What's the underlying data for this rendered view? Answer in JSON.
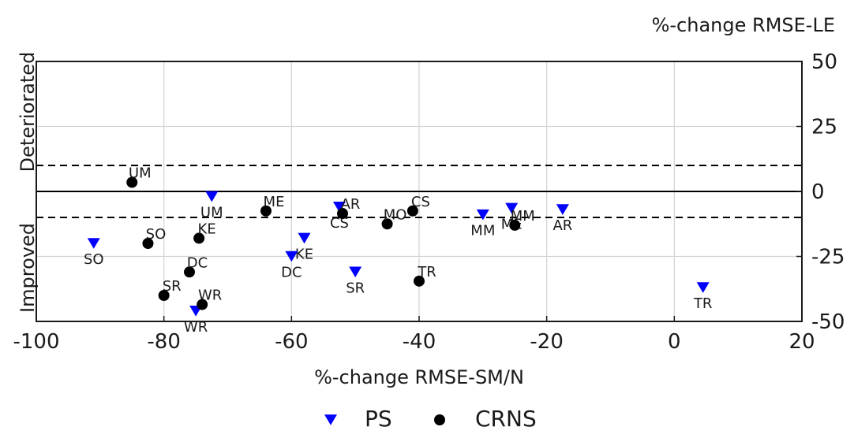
{
  "chart_data": {
    "type": "scatter",
    "xlabel": "%-change RMSE-SM/N",
    "ylabel": "%-change RMSE-LE",
    "side_labels": {
      "upper": "Deteriorated",
      "lower": "Improved"
    },
    "xlim": [
      -100,
      20
    ],
    "ylim": [
      -50,
      50
    ],
    "x_ticks": [
      -100,
      -80,
      -60,
      -40,
      -20,
      0,
      20
    ],
    "y_ticks": [
      50,
      25,
      0,
      -25,
      -50
    ],
    "grid": true,
    "y_axis_side": "right",
    "reference_lines": {
      "solid": [
        0
      ],
      "dashed": [
        10,
        -10
      ]
    },
    "legend_position": "bottom-center",
    "series": [
      {
        "name": "PS",
        "marker": "triangle-down",
        "color": "#0000ff",
        "points": [
          {
            "label": "SO",
            "x": -91,
            "y": -20
          },
          {
            "label": "UM",
            "x": -72.5,
            "y": -2
          },
          {
            "label": "WR",
            "x": -75,
            "y": -46
          },
          {
            "label": "KE",
            "x": -58,
            "y": -18
          },
          {
            "label": "DC",
            "x": -60,
            "y": -25
          },
          {
            "label": "CS",
            "x": -52.5,
            "y": -6
          },
          {
            "label": "SR",
            "x": -50,
            "y": -31
          },
          {
            "label": "MM",
            "x": -30,
            "y": -9
          },
          {
            "label": "ME",
            "x": -25.5,
            "y": -6.5
          },
          {
            "label": "AR",
            "x": -17.5,
            "y": -7
          },
          {
            "label": "TR",
            "x": 4.5,
            "y": -37
          }
        ]
      },
      {
        "name": "CRNS",
        "marker": "circle",
        "color": "#000000",
        "points": [
          {
            "label": "UM",
            "x": -85,
            "y": 3.5
          },
          {
            "label": "SO",
            "x": -82.5,
            "y": -20
          },
          {
            "label": "KE",
            "x": -74.5,
            "y": -18
          },
          {
            "label": "DC",
            "x": -76,
            "y": -31
          },
          {
            "label": "SR",
            "x": -80,
            "y": -40
          },
          {
            "label": "WR",
            "x": -74,
            "y": -43.5
          },
          {
            "label": "ME",
            "x": -64,
            "y": -7.5
          },
          {
            "label": "AR",
            "x": -52,
            "y": -8.5
          },
          {
            "label": "MO",
            "x": -45,
            "y": -12.5
          },
          {
            "label": "CS",
            "x": -41,
            "y": -7.5
          },
          {
            "label": "TR",
            "x": -40,
            "y": -34.5
          },
          {
            "label": "MM",
            "x": -25,
            "y": -13
          }
        ]
      }
    ]
  }
}
